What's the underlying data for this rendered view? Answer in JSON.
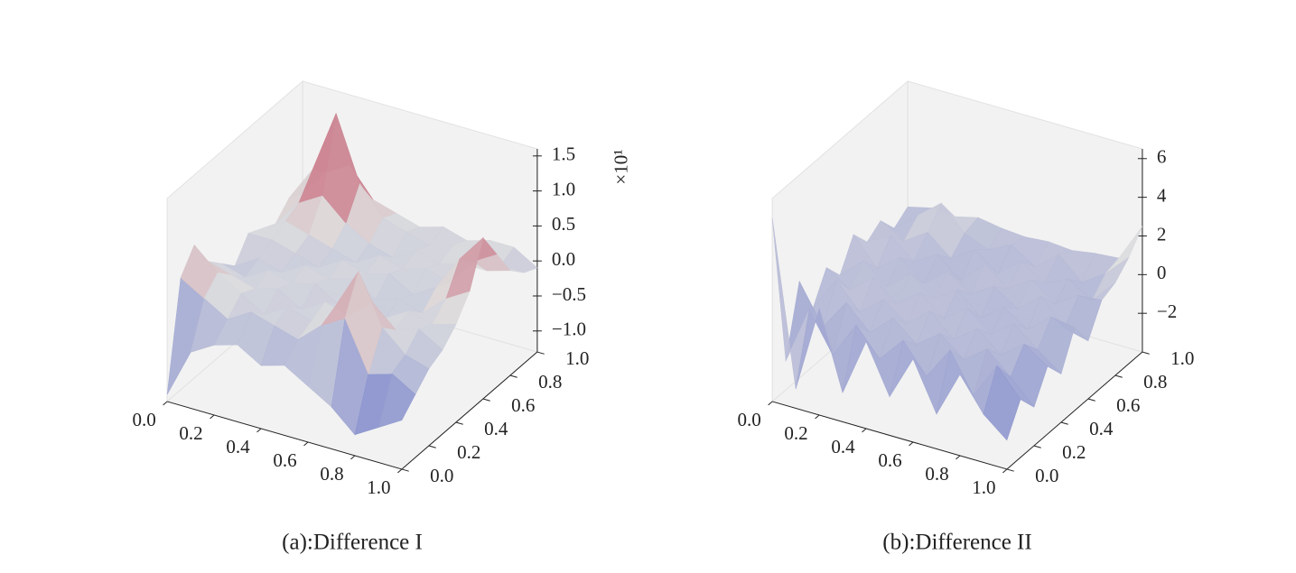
{
  "chart_data": [
    {
      "type": "surface",
      "title": "(a):Difference I",
      "z_offset_label": "×10¹",
      "x": [
        0,
        0.1,
        0.2,
        0.3,
        0.4,
        0.5,
        0.6,
        0.7,
        0.8,
        0.9,
        1
      ],
      "y": [
        0,
        0.1,
        0.2,
        0.3,
        0.4,
        0.5,
        0.6,
        0.7,
        0.8,
        0.9,
        1
      ],
      "z": [
        [
          -1.2,
          0.3,
          0.6,
          0.2,
          0,
          -0.2,
          0.1,
          0,
          -0.1,
          0.1,
          0
        ],
        [
          -0.5,
          0.1,
          0.3,
          0.1,
          -0.1,
          0,
          0.1,
          0.2,
          0.3,
          0.6,
          0.4
        ],
        [
          -0.3,
          -0.1,
          0.1,
          0,
          0.1,
          -0.1,
          0,
          0.1,
          0.5,
          1.5,
          0.6
        ],
        [
          -0.2,
          0.1,
          -0.1,
          0.1,
          0,
          0.1,
          -0.1,
          0,
          0.2,
          0.6,
          0.2
        ],
        [
          -0.4,
          0,
          0.1,
          -0.1,
          0.1,
          0,
          0.1,
          -0.1,
          0,
          0.2,
          0.1
        ],
        [
          -0.3,
          -0.1,
          0,
          0.1,
          -0.1,
          0.1,
          0,
          0.1,
          -0.1,
          0.1,
          0
        ],
        [
          -0.5,
          0.2,
          0.3,
          0,
          0.1,
          -0.1,
          0.1,
          0,
          0.1,
          0,
          0.1
        ],
        [
          -0.7,
          0.4,
          0.9,
          0.3,
          -0.1,
          0,
          -0.1,
          0.1,
          0,
          0.1,
          0
        ],
        [
          -1.0,
          -0.3,
          0.2,
          0,
          0.1,
          -0.1,
          0.1,
          0,
          0.1,
          0.2,
          0.1
        ],
        [
          -0.8,
          -0.2,
          -0.1,
          0.1,
          0,
          0.2,
          0.6,
          0.4,
          0.1,
          0,
          0.1
        ],
        [
          -0.6,
          -0.4,
          -0.2,
          -0.1,
          0.1,
          0.4,
          1.0,
          0.6,
          0.2,
          0,
          -0.1
        ]
      ],
      "xlim": [
        0,
        1
      ],
      "ylim": [
        0,
        1
      ],
      "zlim": [
        -1.3,
        1.6
      ],
      "xticks": [
        {
          "value": 0,
          "label": "0.0"
        },
        0.2,
        0.4,
        0.6,
        0.8,
        {
          "value": 1,
          "label": "1.0"
        }
      ],
      "yticks": [
        {
          "value": 0,
          "label": "0.0"
        },
        0.2,
        0.4,
        0.6,
        0.8,
        {
          "value": 1,
          "label": "1.0"
        }
      ],
      "zticks": [
        {
          "value": -1,
          "label": "−1.0"
        },
        {
          "value": -0.5,
          "label": "−0.5"
        },
        {
          "value": 0,
          "label": "0.0"
        },
        0.5,
        {
          "value": 1,
          "label": "1.0"
        },
        1.5
      ],
      "colormap": "coolwarm"
    },
    {
      "type": "surface",
      "title": "(b):Difference II",
      "x": [
        0,
        0.1,
        0.2,
        0.3,
        0.4,
        0.5,
        0.6,
        0.7,
        0.8,
        0.9,
        1
      ],
      "y": [
        0,
        0.1,
        0.2,
        0.3,
        0.4,
        0.5,
        0.6,
        0.7,
        0.8,
        0.9,
        1
      ],
      "z": [
        [
          5.5,
          -2.5,
          1,
          -1,
          0.5,
          -0.5,
          1,
          0,
          0.5,
          -0.5,
          0
        ],
        [
          -3,
          0.5,
          -1,
          0.8,
          -0.3,
          0.6,
          -0.4,
          0.7,
          -0.2,
          0.5,
          0.3
        ],
        [
          1.5,
          -1.5,
          0.6,
          -0.5,
          0.7,
          -0.4,
          0.5,
          -0.3,
          0.6,
          1.5,
          0.2
        ],
        [
          -2.5,
          0.4,
          -0.6,
          0.5,
          -0.3,
          0.6,
          -0.5,
          0.4,
          -0.4,
          0.3,
          0.5
        ],
        [
          0.5,
          -1,
          0.5,
          -0.4,
          0.6,
          -0.3,
          0.5,
          -0.6,
          0.4,
          -0.2,
          0.3
        ],
        [
          -2,
          0.3,
          -0.5,
          0.6,
          -0.4,
          0.5,
          -0.3,
          0.6,
          -0.5,
          0.4,
          0.2
        ],
        [
          0.3,
          -1.2,
          0.4,
          -0.5,
          0.5,
          -0.6,
          0.4,
          -0.3,
          0.5,
          -0.4,
          0.3
        ],
        [
          -2.2,
          0.5,
          -0.6,
          0.4,
          -0.5,
          0.3,
          -0.4,
          0.5,
          -0.3,
          0.6,
          0.2
        ],
        [
          0.2,
          -1.5,
          0.3,
          -0.6,
          0.4,
          -0.5,
          0.6,
          -0.4,
          0.3,
          -0.5,
          0.4
        ],
        [
          -1.5,
          0.4,
          -0.8,
          0.3,
          -0.6,
          0.5,
          -0.7,
          0.4,
          -0.5,
          0.3,
          0.5
        ],
        [
          -2.5,
          -1,
          -2,
          -0.5,
          -1.5,
          0.3,
          -1,
          0.5,
          0.8,
          1.5,
          2.5
        ]
      ],
      "xlim": [
        0,
        1
      ],
      "ylim": [
        0,
        1
      ],
      "zlim": [
        -4,
        6.5
      ],
      "xticks": [
        {
          "value": 0,
          "label": "0.0"
        },
        0.2,
        0.4,
        0.6,
        0.8,
        {
          "value": 1,
          "label": "1.0"
        }
      ],
      "yticks": [
        {
          "value": 0,
          "label": "0.0"
        },
        0.2,
        0.4,
        0.6,
        0.8,
        {
          "value": 1,
          "label": "1.0"
        }
      ],
      "zticks": [
        {
          "value": -2,
          "label": "−2"
        },
        0,
        2,
        4,
        6
      ],
      "colormap": "coolwarm"
    }
  ]
}
